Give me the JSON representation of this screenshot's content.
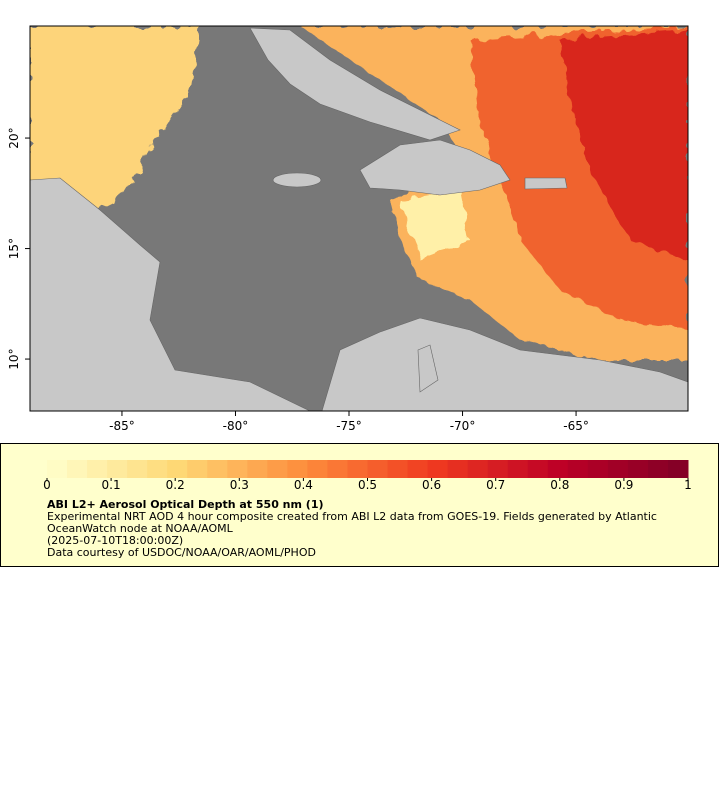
{
  "map": {
    "xlim": [
      -89.05,
      -60.07
    ],
    "ylim": [
      7.65,
      25.07
    ],
    "xticks": [
      {
        "value": -85,
        "label": "-85°"
      },
      {
        "value": -80,
        "label": "-80°"
      },
      {
        "value": -75,
        "label": "-75°"
      },
      {
        "value": -70,
        "label": "-70°"
      },
      {
        "value": -65,
        "label": "-65°"
      }
    ],
    "yticks": [
      {
        "value": 10,
        "label": "10°"
      },
      {
        "value": 15,
        "label": "15°"
      },
      {
        "value": 20,
        "label": "20°"
      }
    ]
  },
  "legend": {
    "ticks": [
      0,
      0.1,
      0.2,
      0.3,
      0.4,
      0.5,
      0.6,
      0.7,
      0.8,
      0.9,
      1
    ],
    "title": "ABI L2+ Aerosol Optical Depth at 550 nm (1)",
    "description": "Experimental NRT AOD 4 hour composite created from ABI L2 data from GOES-19. Fields generated by Atlantic OceanWatch node at NOAA/AOML",
    "time": "(2025-07-10T18:00:00Z)",
    "credit": "Data courtesy of USDOC/NOAA/OAR/AOML/PHOD"
  }
}
